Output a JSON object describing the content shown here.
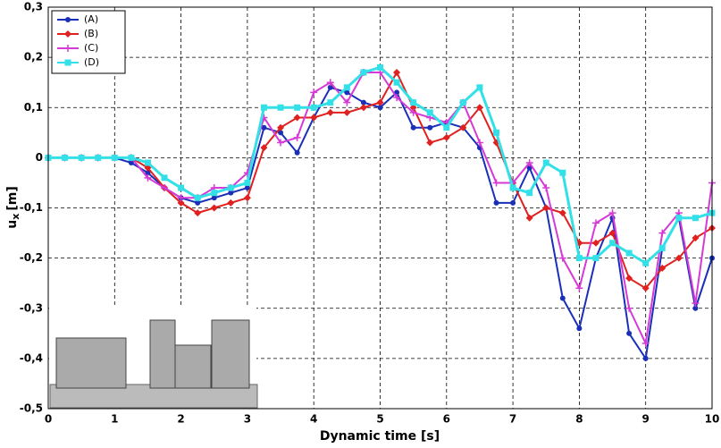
{
  "chart_data": {
    "type": "line",
    "x_label": "Dynamic time [s]",
    "y_label": {
      "symbol": "u",
      "subscript": "x",
      "unit": "[m]"
    },
    "x": [
      0,
      0.25,
      0.5,
      0.75,
      1,
      1.25,
      1.5,
      1.75,
      2,
      2.25,
      2.5,
      2.75,
      3,
      3.25,
      3.5,
      3.75,
      4,
      4.25,
      4.5,
      4.75,
      5,
      5.25,
      5.5,
      5.75,
      6,
      6.25,
      6.5,
      6.75,
      7,
      7.25,
      7.5,
      7.75,
      8,
      8.25,
      8.5,
      8.75,
      9,
      9.25,
      9.5,
      9.75,
      10
    ],
    "series": [
      {
        "name": "(A)",
        "color": "#1a2fb8",
        "marker": "circle",
        "values": [
          0,
          0,
          0,
          0,
          0,
          -0.01,
          -0.03,
          -0.06,
          -0.08,
          -0.09,
          -0.08,
          -0.07,
          -0.06,
          0.06,
          0.05,
          0.01,
          0.08,
          0.14,
          0.13,
          0.11,
          0.1,
          0.13,
          0.06,
          0.06,
          0.07,
          0.06,
          0.02,
          -0.09,
          -0.09,
          -0.02,
          -0.1,
          -0.28,
          -0.34,
          -0.2,
          -0.12,
          -0.35,
          -0.4,
          -0.18,
          -0.12,
          -0.3,
          -0.2
        ]
      },
      {
        "name": "(B)",
        "color": "#e0211f",
        "marker": "diamond",
        "values": [
          0,
          0,
          0,
          0,
          0,
          0,
          -0.02,
          -0.06,
          -0.09,
          -0.11,
          -0.1,
          -0.09,
          -0.08,
          0.02,
          0.06,
          0.08,
          0.08,
          0.09,
          0.09,
          0.1,
          0.11,
          0.17,
          0.1,
          0.03,
          0.04,
          0.06,
          0.1,
          0.03,
          -0.05,
          -0.12,
          -0.1,
          -0.11,
          -0.17,
          -0.17,
          -0.15,
          -0.24,
          -0.26,
          -0.22,
          -0.2,
          -0.16,
          -0.14
        ]
      },
      {
        "name": "(C)",
        "color": "#d63ad6",
        "marker": "plus",
        "values": [
          0,
          0,
          0,
          0,
          0,
          0,
          -0.04,
          -0.06,
          -0.08,
          -0.08,
          -0.06,
          -0.06,
          -0.03,
          0.08,
          0.03,
          0.04,
          0.13,
          0.15,
          0.11,
          0.17,
          0.17,
          0.12,
          0.09,
          0.08,
          0.07,
          0.11,
          0.03,
          -0.05,
          -0.05,
          -0.01,
          -0.06,
          -0.2,
          -0.26,
          -0.13,
          -0.11,
          -0.3,
          -0.37,
          -0.15,
          -0.11,
          -0.29,
          -0.05
        ]
      },
      {
        "name": "(D)",
        "color": "#33e0e8",
        "marker": "square",
        "values": [
          0,
          0,
          0,
          0,
          0,
          0,
          -0.01,
          -0.04,
          -0.06,
          -0.08,
          -0.07,
          -0.06,
          -0.05,
          0.1,
          0.1,
          0.1,
          0.1,
          0.11,
          0.14,
          0.17,
          0.18,
          0.15,
          0.11,
          0.09,
          0.06,
          0.11,
          0.14,
          0.05,
          -0.06,
          -0.07,
          -0.01,
          -0.03,
          -0.2,
          -0.2,
          -0.17,
          -0.19,
          -0.21,
          -0.18,
          -0.12,
          -0.12,
          -0.11
        ]
      }
    ],
    "xlim": [
      0,
      10
    ],
    "xticks": [
      0,
      1,
      2,
      3,
      4,
      5,
      6,
      7,
      8,
      9,
      10
    ],
    "ylim": [
      -0.5,
      0.3
    ],
    "yticks": [
      {
        "value": -0.5,
        "label": "-0,5"
      },
      {
        "value": -0.4,
        "label": "-0,4"
      },
      {
        "value": -0.3,
        "label": "-0,3"
      },
      {
        "value": -0.2,
        "label": "-0,2"
      },
      {
        "value": -0.1,
        "label": "-0,1"
      },
      0,
      {
        "value": 0.1,
        "label": "0,1"
      },
      {
        "value": 0.2,
        "label": "0,2"
      },
      {
        "value": 0.3,
        "label": "0,3"
      }
    ],
    "grid": true,
    "legend": "upper-left"
  }
}
